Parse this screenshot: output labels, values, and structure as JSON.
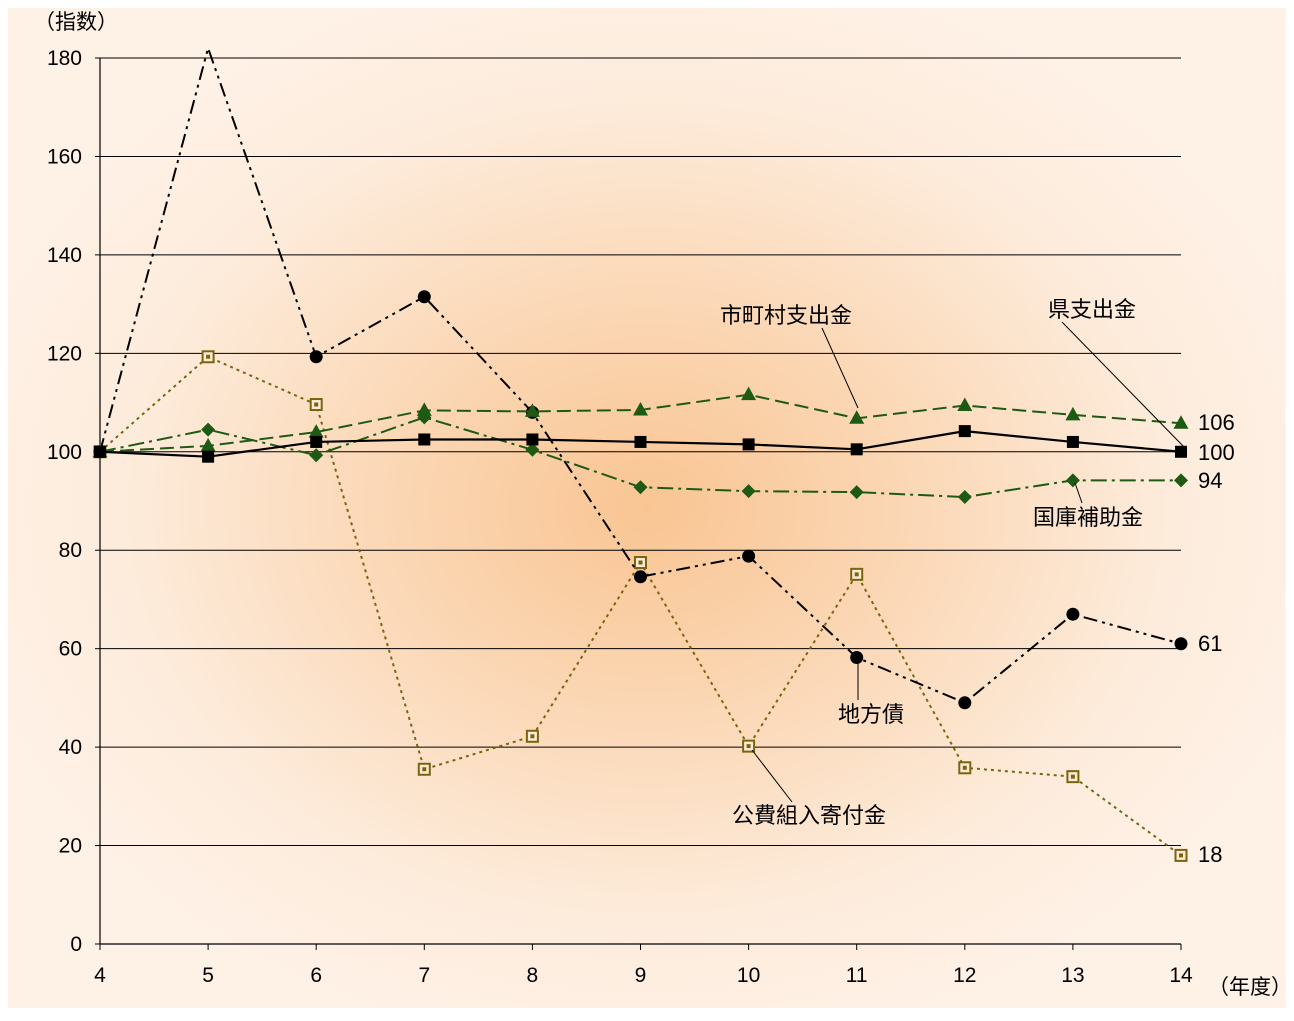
{
  "chart_data": {
    "type": "line",
    "title": "",
    "ylabel": "（指数）",
    "xlabel": "（年度）",
    "ylim": [
      0,
      180
    ],
    "yticks": [
      0,
      20,
      40,
      60,
      80,
      100,
      120,
      140,
      160,
      180
    ],
    "x": [
      4,
      5,
      6,
      7,
      8,
      9,
      10,
      11,
      12,
      13,
      14
    ],
    "grid": "horizontal",
    "legend": "none (series labelled directly on chart)",
    "series": [
      {
        "name": "県支出金",
        "values": [
          100,
          99,
          102,
          102.5,
          102.5,
          102,
          101.5,
          100.5,
          104.2,
          102,
          100
        ],
        "end_label": "100",
        "color": "#000000",
        "marker": "square",
        "line_style": "solid"
      },
      {
        "name": "市町村支出金",
        "values": [
          100,
          101.2,
          104,
          108.4,
          108.2,
          108.5,
          111.6,
          106.8,
          109.4,
          107.5,
          105.8
        ],
        "end_label": "106",
        "color": "#1e5a14",
        "marker": "triangle",
        "line_style": "dashed"
      },
      {
        "name": "国庫補助金",
        "values": [
          100,
          104.5,
          99.3,
          107,
          100.4,
          92.8,
          92,
          91.8,
          90.8,
          94.2,
          94.2
        ],
        "end_label": "94",
        "color": "#1e5a14",
        "marker": "diamond",
        "line_style": "long-dash-dot"
      },
      {
        "name": "地方債",
        "values": [
          100,
          182,
          119.3,
          131.5,
          108,
          74.6,
          78.8,
          58.2,
          49,
          67,
          61
        ],
        "end_label": "61",
        "color": "#000000",
        "marker": "circle",
        "line_style": "dash-dot-dot"
      },
      {
        "name": "公費組入寄付金",
        "values": [
          100,
          119.3,
          109.6,
          35.5,
          42.2,
          77.5,
          40.2,
          75.1,
          35.8,
          34,
          18
        ],
        "end_label": "18",
        "color": "#7a6410",
        "marker": "open-square",
        "line_style": "dotted"
      }
    ]
  },
  "colors": {
    "plot_bg_outer": "#fdefe2",
    "plot_bg_center": "#f9c593",
    "grid": "#000000"
  }
}
